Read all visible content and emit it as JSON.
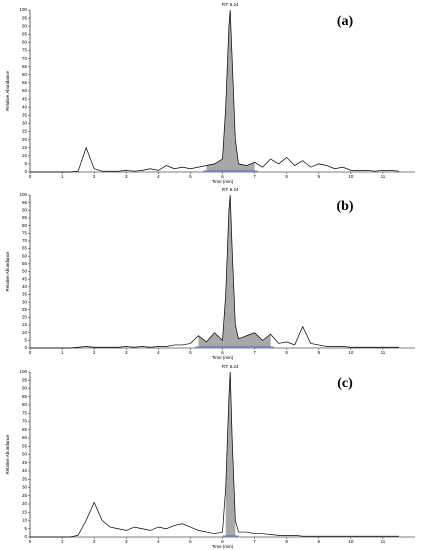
{
  "chart_data": [
    {
      "type": "line",
      "title": "(a)",
      "annotation": "RT: 6.24",
      "x_label": "Time (min)",
      "y_label": "Relative Abundance",
      "x": [
        0,
        0.25,
        0.5,
        0.75,
        1,
        1.25,
        1.5,
        1.75,
        2,
        2.25,
        2.5,
        2.75,
        3,
        3.25,
        3.5,
        3.75,
        4,
        4.25,
        4.5,
        4.75,
        5,
        5.25,
        5.5,
        5.75,
        6,
        6.1,
        6.2,
        6.24,
        6.3,
        6.4,
        6.5,
        6.75,
        7,
        7.25,
        7.5,
        7.75,
        8,
        8.25,
        8.5,
        8.75,
        9,
        9.25,
        9.5,
        9.75,
        10,
        10.25,
        10.5,
        10.75,
        11,
        11.25,
        11.5
      ],
      "series": [
        {
          "color": "#000000",
          "values": [
            0,
            0,
            0,
            0,
            0,
            0,
            0.5,
            15,
            2,
            0.5,
            0.5,
            0.5,
            1,
            0.5,
            1,
            2,
            1,
            4,
            2,
            3,
            2,
            3,
            4,
            5,
            8,
            40,
            90,
            100,
            70,
            20,
            5,
            4,
            6,
            3,
            8,
            5,
            9,
            4,
            7,
            3,
            5,
            4,
            2,
            3,
            1,
            1,
            1,
            0.5,
            1,
            1,
            0.5
          ]
        }
      ],
      "xlim": [
        0,
        12
      ],
      "ylim": [
        0,
        100
      ],
      "xticks": [
        0,
        1,
        2,
        3,
        4,
        5,
        6,
        7,
        8,
        9,
        10,
        11
      ],
      "yticks": [
        0,
        5,
        10,
        15,
        20,
        25,
        30,
        35,
        40,
        45,
        50,
        55,
        60,
        65,
        70,
        75,
        80,
        85,
        90,
        95,
        100
      ]
    },
    {
      "type": "line",
      "title": "(b)",
      "annotation": "RT: 6.24",
      "x_label": "Time (min)",
      "y_label": "Relative Abundance",
      "x": [
        0,
        0.25,
        0.5,
        0.75,
        1,
        1.25,
        1.5,
        1.75,
        2,
        2.25,
        2.5,
        2.75,
        3,
        3.25,
        3.5,
        3.75,
        4,
        4.25,
        4.5,
        4.75,
        5,
        5.25,
        5.5,
        5.75,
        6,
        6.1,
        6.2,
        6.24,
        6.3,
        6.4,
        6.5,
        6.75,
        7,
        7.25,
        7.5,
        7.75,
        8,
        8.25,
        8.5,
        8.75,
        9,
        9.25,
        9.5,
        9.75,
        10,
        10.25,
        10.5,
        10.75,
        11,
        11.25,
        11.5
      ],
      "series": [
        {
          "color": "#000000",
          "values": [
            0,
            0,
            0,
            0,
            0,
            0,
            0.5,
            1,
            0.5,
            0.5,
            0.5,
            0.5,
            1,
            0.5,
            1,
            0.5,
            1,
            1,
            2,
            2,
            3,
            8,
            4,
            10,
            5,
            35,
            90,
            100,
            65,
            15,
            6,
            8,
            10,
            5,
            9,
            3,
            4,
            2,
            14,
            3,
            2,
            1,
            1,
            1,
            0.5,
            0.5,
            0.5,
            0.5,
            0.5,
            0.5,
            0.5
          ]
        }
      ],
      "xlim": [
        0,
        12
      ],
      "ylim": [
        0,
        100
      ],
      "xticks": [
        0,
        1,
        2,
        3,
        4,
        5,
        6,
        7,
        8,
        9,
        10,
        11
      ],
      "yticks": [
        0,
        5,
        10,
        15,
        20,
        25,
        30,
        35,
        40,
        45,
        50,
        55,
        60,
        65,
        70,
        75,
        80,
        85,
        90,
        95,
        100
      ]
    },
    {
      "type": "line",
      "title": "(c)",
      "annotation": "RT: 6.24",
      "x_label": "Time (min)",
      "y_label": "Relative Abundance",
      "x": [
        0,
        0.25,
        0.5,
        0.75,
        1,
        1.25,
        1.5,
        1.75,
        2,
        2.25,
        2.5,
        2.75,
        3,
        3.25,
        3.5,
        3.75,
        4,
        4.25,
        4.5,
        4.75,
        5,
        5.25,
        5.5,
        5.75,
        6,
        6.1,
        6.2,
        6.24,
        6.3,
        6.4,
        6.5,
        6.75,
        7,
        7.25,
        7.5,
        7.75,
        8,
        8.25,
        8.5,
        8.75,
        9,
        9.25,
        9.5,
        9.75,
        10,
        10.25,
        10.5,
        10.75,
        11,
        11.25,
        11.5
      ],
      "series": [
        {
          "color": "#000000",
          "values": [
            0,
            0,
            0,
            0,
            0,
            0,
            1,
            10,
            21,
            10,
            6,
            5,
            4,
            6,
            5,
            4,
            6,
            5,
            7,
            8,
            6,
            4,
            3,
            2,
            3,
            30,
            85,
            100,
            60,
            10,
            3,
            3,
            2,
            2,
            1.5,
            1,
            1,
            1,
            0.5,
            0.5,
            0.5,
            0.5,
            0.5,
            0.5,
            0.5,
            0.5,
            0.5,
            0.5,
            0.5,
            0.5,
            0.5
          ]
        }
      ],
      "xlim": [
        0,
        12
      ],
      "ylim": [
        0,
        100
      ],
      "xticks": [
        0,
        1,
        2,
        3,
        4,
        5,
        6,
        7,
        8,
        9,
        10,
        11
      ],
      "yticks": [
        0,
        5,
        10,
        15,
        20,
        25,
        30,
        35,
        40,
        45,
        50,
        55,
        60,
        65,
        70,
        75,
        80,
        85,
        90,
        95,
        100
      ]
    }
  ]
}
